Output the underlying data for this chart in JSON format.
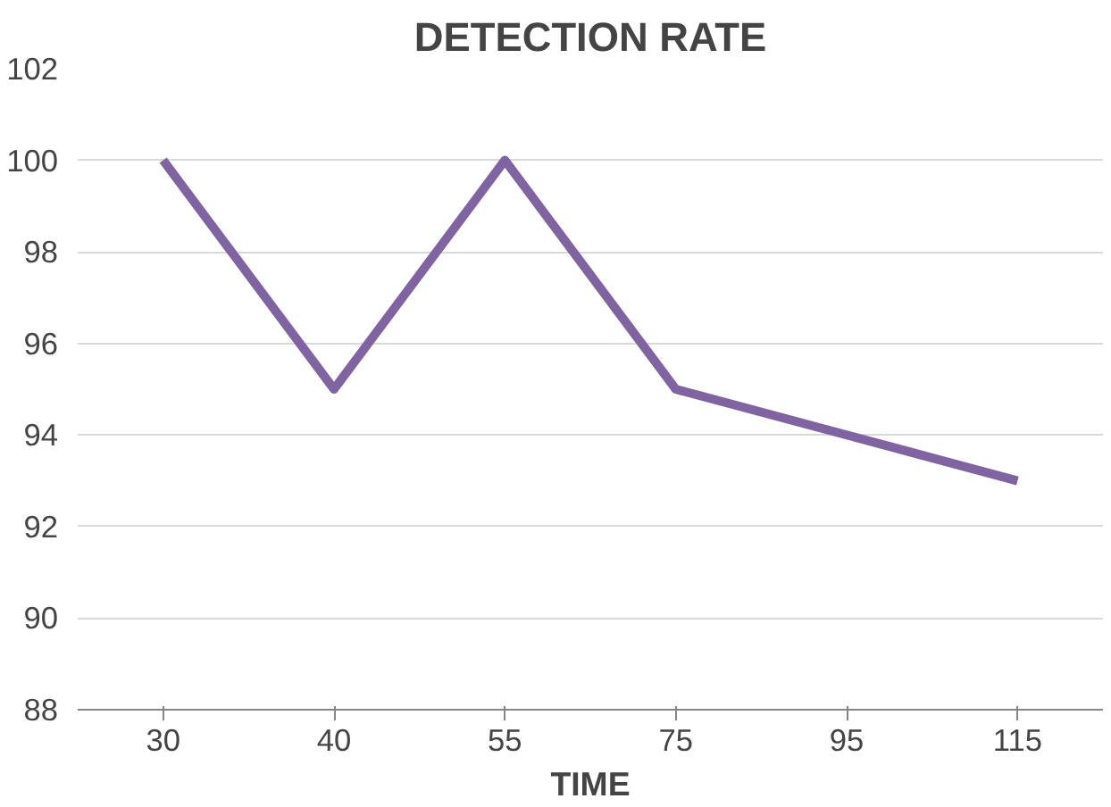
{
  "chart_data": {
    "type": "line",
    "title": "DETECTION RATE",
    "xlabel": "TIME",
    "categories": [
      "30",
      "40",
      "55",
      "75",
      "95",
      "115"
    ],
    "series": [
      {
        "color": "#8064a2",
        "values": [
          100,
          95,
          100,
          95,
          94,
          93
        ]
      }
    ],
    "ylim": [
      88,
      102
    ],
    "yticks": [
      88,
      90,
      92,
      94,
      96,
      98,
      100,
      102
    ],
    "grid": "y",
    "marker": "none",
    "line_style": "solid"
  }
}
